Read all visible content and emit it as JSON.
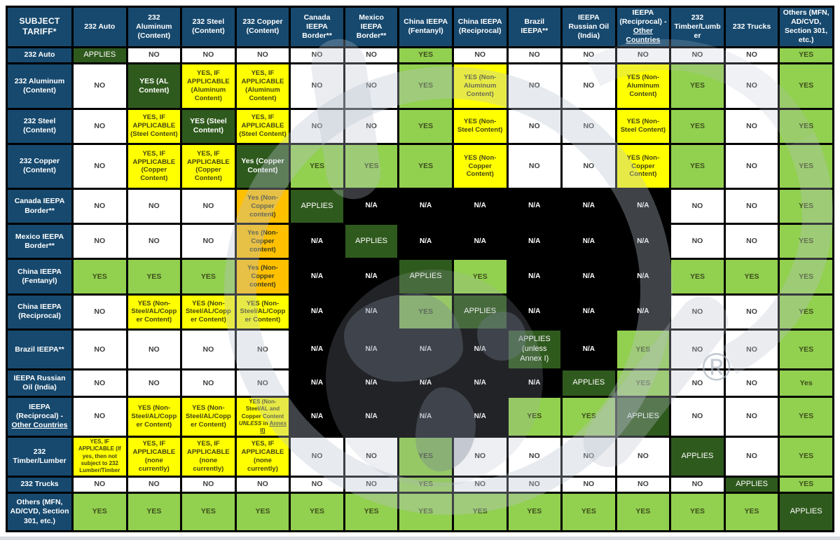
{
  "colors": {
    "header_blue": "#17496E",
    "applies_green": "#2F5A1D",
    "yes_green": "#92D050",
    "highlight_yellow": "#FFFF00",
    "highlight_orange": "#FFC000",
    "na_black": "#000000",
    "border_black": "#000000"
  },
  "watermark": {
    "registered": "®"
  },
  "chart_data": {
    "type": "table",
    "corner_header": "SUBJECT TARIFF*",
    "cell_legend": {
      "APPLIES": "dark green - tariff applies to itself",
      "YES": "light green - stacks",
      "NO": "white - does not stack",
      "N/A": "black - not applicable",
      "conditional": "yellow / orange - stacks with conditions"
    },
    "columns": [
      {
        "label": "232 Auto"
      },
      {
        "label": "232 Aluminum (Content)"
      },
      {
        "label": "232 Steel (Content)"
      },
      {
        "label": "232 Copper (Content)"
      },
      {
        "label": "Canada IEEPA Border**"
      },
      {
        "label": "Mexico IEEPA Border**"
      },
      {
        "label": "China IEEPA (Fentanyl)"
      },
      {
        "label": "China IEEPA (Reciprocal)"
      },
      {
        "label": "Brazil IEEPA**"
      },
      {
        "label": "IEEPA Russian Oil (India)"
      },
      {
        "label": "IEEPA (Reciprocal) -",
        "underline": "Other Countries"
      },
      {
        "label": "232 Timber/Lumber"
      },
      {
        "label": "232 Trucks"
      },
      {
        "label": "Others (MFN, AD/CVD, Section 301, etc.)"
      }
    ],
    "rows": [
      {
        "header": {
          "label": "232 Auto"
        },
        "cells": [
          "APPLIES",
          "NO",
          "NO",
          "NO",
          "NO",
          "NO",
          "YES",
          "NO",
          "NO",
          "NO",
          "NO",
          "NO",
          "NO",
          "YES"
        ]
      },
      {
        "header": {
          "label": "232 Aluminum (Content)"
        },
        "cells": [
          "NO",
          {
            "t": "YES (AL Content)",
            "c": "applies",
            "b": 1
          },
          {
            "t": "YES, IF APPLICABLE (Aluminum Content)",
            "c": "yellow"
          },
          {
            "t": "YES, IF APPLICABLE (Aluminum Content)",
            "c": "yellow"
          },
          "NO",
          "NO",
          "YES",
          {
            "t": "YES (Non-Aluminum Content)",
            "c": "yellow"
          },
          "NO",
          "NO",
          {
            "t": "YES (Non-Aluminum Content)",
            "c": "yellow"
          },
          "YES",
          "NO",
          "YES"
        ]
      },
      {
        "header": {
          "label": "232 Steel (Content)"
        },
        "cells": [
          "NO",
          {
            "t": "YES, IF APPLICABLE (Steel Content)",
            "c": "yellow"
          },
          {
            "t": "YES (Steel Content)",
            "c": "applies",
            "b": 1
          },
          {
            "t": "YES, IF APPLICABLE (Steel Content)",
            "c": "yellow"
          },
          "NO",
          "NO",
          "YES",
          {
            "t": "YES (Non-Steel Content)",
            "c": "yellow"
          },
          "NO",
          "NO",
          {
            "t": "YES (Non-Steel Content)",
            "c": "yellow"
          },
          "YES",
          "NO",
          "YES"
        ]
      },
      {
        "header": {
          "label": "232 Copper (Content)"
        },
        "cells": [
          "NO",
          {
            "t": "YES, IF APPLICABLE (Copper Content)",
            "c": "yellow"
          },
          {
            "t": "YES, IF APPLICABLE (Copper Content)",
            "c": "yellow"
          },
          {
            "t": "Yes (Copper Content)",
            "c": "applies",
            "b": 1
          },
          "YES",
          "YES",
          "YES",
          {
            "t": "YES (Non-Copper Content)",
            "c": "yellow"
          },
          "NO",
          "NO",
          {
            "t": "YES (Non-Copper Content)",
            "c": "yellow"
          },
          "YES",
          "NO",
          "YES"
        ]
      },
      {
        "header": {
          "label": "Canada IEEPA Border**"
        },
        "cells": [
          "NO",
          "NO",
          "NO",
          {
            "t": "Yes (Non-Copper content)",
            "c": "orange"
          },
          "APPLIES",
          "N/A",
          "N/A",
          "N/A",
          "N/A",
          "N/A",
          "N/A",
          "NO",
          "NO",
          "YES"
        ]
      },
      {
        "header": {
          "label": "Mexico IEEPA Border**"
        },
        "cells": [
          "NO",
          "NO",
          "NO",
          {
            "t": "Yes (Non-Copper content)",
            "c": "orange"
          },
          "N/A",
          "APPLIES",
          "N/A",
          "N/A",
          "N/A",
          "N/A",
          "N/A",
          "NO",
          "NO",
          "YES"
        ]
      },
      {
        "header": {
          "label": "China IEEPA (Fentanyl)"
        },
        "cells": [
          "YES",
          "YES",
          "YES",
          {
            "t": "Yes (Non-Copper content)",
            "c": "orange"
          },
          "N/A",
          "N/A",
          "APPLIES",
          "YES",
          "N/A",
          "N/A",
          "N/A",
          "YES",
          "YES",
          "YES"
        ]
      },
      {
        "header": {
          "label": "China IEEPA (Reciprocal)"
        },
        "cells": [
          "NO",
          {
            "t": "YES (Non-Steel/AL/Copper Content)",
            "c": "yellow"
          },
          {
            "t": "YES (Non-Steel/AL/Copper Content)",
            "c": "yellow"
          },
          {
            "t": "YES (Non-Steel/AL/Copper Content)",
            "c": "yellow"
          },
          "N/A",
          "N/A",
          "YES",
          "APPLIES",
          "N/A",
          "N/A",
          "N/A",
          "NO",
          "NO",
          "YES"
        ]
      },
      {
        "header": {
          "label": "Brazil IEEPA**"
        },
        "cells": [
          "NO",
          "NO",
          "NO",
          "NO",
          "N/A",
          "N/A",
          "N/A",
          "N/A",
          {
            "t": "APPLIES (unless Annex I)",
            "c": "applies"
          },
          "N/A",
          "YES",
          "NO",
          "NO",
          "YES"
        ]
      },
      {
        "header": {
          "label": "IEEPA Russian Oil (India)"
        },
        "cells": [
          "NO",
          "NO",
          "NO",
          "NO",
          "N/A",
          "N/A",
          "N/A",
          "N/A",
          "N/A",
          "APPLIES",
          "YES",
          "NO",
          "NO",
          "Yes"
        ]
      },
      {
        "header": {
          "label": "IEEPA (Reciprocal) -",
          "underline": "Other Countries"
        },
        "cells": [
          "NO",
          {
            "t": "YES (Non-Steel/AL/Copper Content)",
            "c": "yellow"
          },
          {
            "t": "YES (Non-Steel/AL/Copper Content)",
            "c": "yellow"
          },
          {
            "parts": [
              {
                "t": "YES (Non-Steel/AL and Copper Content "
              },
              {
                "t": "UNLESS",
                "st": "em"
              },
              {
                "t": " in "
              },
              {
                "t": "Annex II)",
                "st": "u"
              }
            ],
            "c": "yellow",
            "s": 1
          },
          "N/A",
          "N/A",
          "N/A",
          "N/A",
          "YES",
          "YES",
          "APPLIES",
          "NO",
          "NO",
          "YES"
        ]
      },
      {
        "header": {
          "label": "232 Timber/Lumber"
        },
        "cells": [
          {
            "t": "YES, IF APPLICABLE (If yes, then not subject to 232 Lumber/Timber",
            "c": "yellow",
            "s": 1
          },
          {
            "t": "YES, IF APPLICABLE (none currently)",
            "c": "yellow"
          },
          {
            "t": "YES, IF APPLICABLE (none currently)",
            "c": "yellow"
          },
          {
            "t": "YES, IF APPLICABLE (none currently)",
            "c": "yellow"
          },
          "NO",
          "NO",
          "YES",
          "NO",
          "NO",
          "NO",
          "NO",
          "APPLIES",
          "NO",
          "YES"
        ]
      },
      {
        "header": {
          "label": "232 Trucks"
        },
        "cells": [
          "NO",
          "NO",
          "NO",
          "NO",
          "NO",
          "NO",
          "YES",
          "NO",
          "NO",
          "NO",
          "NO",
          "NO",
          "APPLIES",
          "YES"
        ]
      },
      {
        "header": {
          "label": "Others (MFN, AD/CVD, Section 301, etc.)"
        },
        "cells": [
          "YES",
          "YES",
          "YES",
          "YES",
          "YES",
          "YES",
          "YES",
          "YES",
          "YES",
          "YES",
          "YES",
          "YES",
          "YES",
          "APPLIES"
        ]
      }
    ]
  }
}
